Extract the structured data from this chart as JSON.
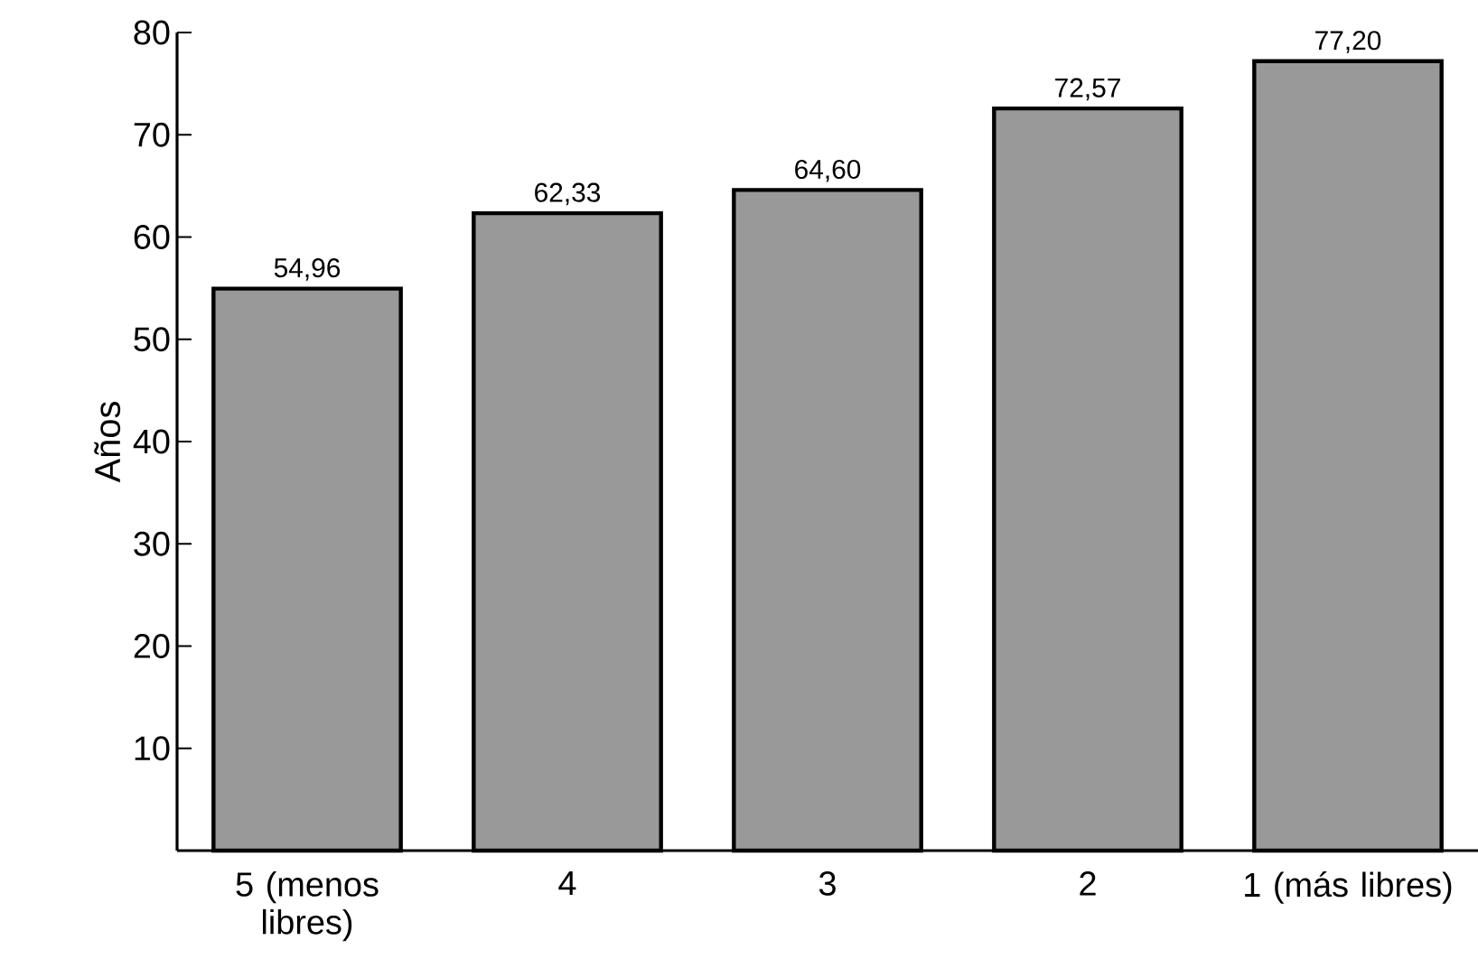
{
  "chart_data": {
    "type": "bar",
    "ylabel": "Años",
    "categories": [
      "5 (menos libres)",
      "4",
      "3",
      "2",
      "1 (más libres)"
    ],
    "values": [
      54.96,
      62.33,
      64.6,
      72.57,
      77.2
    ],
    "value_labels": [
      "54,96",
      "62,33",
      "64,60",
      "72,57",
      "77,20"
    ],
    "color": "#999999",
    "ylim": [
      0,
      80
    ],
    "yticks": [
      10,
      20,
      30,
      40,
      50,
      60,
      70,
      80
    ],
    "grid": false
  }
}
